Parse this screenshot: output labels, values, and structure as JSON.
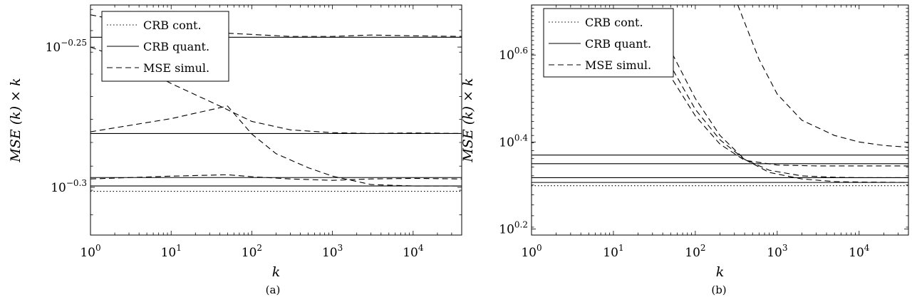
{
  "chart_data": [
    {
      "type": "line",
      "panel_label": "(a)",
      "xlabel": "k",
      "ylabel": "MSE (k) × k",
      "xscale": "log10",
      "yscale": "log10",
      "xlim": [
        1,
        40000
      ],
      "ylim_log10": [
        -0.317,
        -0.235
      ],
      "xticks": [
        {
          "value": 1,
          "base": "10",
          "exp": "0"
        },
        {
          "value": 10,
          "base": "10",
          "exp": "1"
        },
        {
          "value": 100,
          "base": "10",
          "exp": "2"
        },
        {
          "value": 1000,
          "base": "10",
          "exp": "3"
        },
        {
          "value": 10000,
          "base": "10",
          "exp": "4"
        }
      ],
      "yticks": [
        {
          "log10": -0.25,
          "base": "10",
          "exp": "−0.25"
        },
        {
          "log10": -0.3,
          "base": "10",
          "exp": "−0.3"
        }
      ],
      "legend": {
        "position": "top-left",
        "entries": [
          {
            "label": "CRB cont.",
            "style": "dotted"
          },
          {
            "label": "CRB quant.",
            "style": "solid"
          },
          {
            "label": "MSE simul.",
            "style": "dashed"
          }
        ]
      },
      "grid": false,
      "series": [
        {
          "style": "dotted",
          "points": [
            [
              1,
              -0.3014
            ],
            [
              40000,
              -0.3014
            ]
          ]
        },
        {
          "style": "solid",
          "points": [
            [
              1,
              -0.2465
            ],
            [
              40000,
              -0.2465
            ]
          ]
        },
        {
          "style": "solid",
          "points": [
            [
              1,
              -0.2808
            ],
            [
              40000,
              -0.2808
            ]
          ]
        },
        {
          "style": "solid",
          "points": [
            [
              1,
              -0.2965
            ],
            [
              40000,
              -0.2965
            ]
          ]
        },
        {
          "style": "solid",
          "points": [
            [
              1,
              -0.2995
            ],
            [
              40000,
              -0.2995
            ]
          ]
        },
        {
          "style": "dashed",
          "points": [
            [
              1,
              -0.2385
            ],
            [
              5,
              -0.2425
            ],
            [
              20,
              -0.2445
            ],
            [
              100,
              -0.2455
            ],
            [
              300,
              -0.2462
            ],
            [
              1000,
              -0.2462
            ],
            [
              3000,
              -0.2457
            ],
            [
              10000,
              -0.246
            ],
            [
              40000,
              -0.2462
            ]
          ]
        },
        {
          "style": "dashed",
          "points": [
            [
              1,
              -0.25
            ],
            [
              3,
              -0.255
            ],
            [
              10,
              -0.263
            ],
            [
              40,
              -0.271
            ],
            [
              100,
              -0.2765
            ],
            [
              300,
              -0.2795
            ],
            [
              1000,
              -0.2805
            ],
            [
              3000,
              -0.2808
            ],
            [
              10000,
              -0.2806
            ],
            [
              40000,
              -0.2808
            ]
          ]
        },
        {
          "style": "dashed",
          "points": [
            [
              1,
              -0.2802
            ],
            [
              10,
              -0.2755
            ],
            [
              50,
              -0.271
            ],
            [
              100,
              -0.281
            ],
            [
              200,
              -0.288
            ],
            [
              500,
              -0.293
            ],
            [
              1000,
              -0.296
            ],
            [
              3000,
              -0.299
            ],
            [
              10000,
              -0.2995
            ],
            [
              40000,
              -0.2995
            ]
          ]
        },
        {
          "style": "dashed",
          "points": [
            [
              1,
              -0.297
            ],
            [
              10,
              -0.296
            ],
            [
              50,
              -0.2955
            ],
            [
              100,
              -0.2962
            ],
            [
              300,
              -0.297
            ],
            [
              1000,
              -0.2975
            ],
            [
              3000,
              -0.297
            ],
            [
              10000,
              -0.2968
            ],
            [
              40000,
              -0.297
            ]
          ]
        }
      ]
    },
    {
      "type": "line",
      "panel_label": "(b)",
      "xlabel": "k",
      "ylabel": "MSE (k) × k",
      "xscale": "log10",
      "yscale": "log10",
      "xlim": [
        1,
        40000
      ],
      "ylim_log10": [
        0.186,
        0.715
      ],
      "xticks": [
        {
          "value": 1,
          "base": "10",
          "exp": "0"
        },
        {
          "value": 10,
          "base": "10",
          "exp": "1"
        },
        {
          "value": 100,
          "base": "10",
          "exp": "2"
        },
        {
          "value": 1000,
          "base": "10",
          "exp": "3"
        },
        {
          "value": 10000,
          "base": "10",
          "exp": "4"
        }
      ],
      "yticks": [
        {
          "log10": 0.2,
          "base": "10",
          "exp": "0.2"
        },
        {
          "log10": 0.4,
          "base": "10",
          "exp": "0.4"
        },
        {
          "log10": 0.6,
          "base": "10",
          "exp": "0.6"
        }
      ],
      "legend": {
        "position": "top-left",
        "entries": [
          {
            "label": "CRB cont.",
            "style": "dotted"
          },
          {
            "label": "CRB quant.",
            "style": "solid"
          },
          {
            "label": "MSE simul.",
            "style": "dashed"
          }
        ]
      },
      "grid": false,
      "series": [
        {
          "style": "dotted",
          "points": [
            [
              1,
              0.2995
            ],
            [
              40000,
              0.2995
            ]
          ]
        },
        {
          "style": "solid",
          "points": [
            [
              1,
              0.37
            ],
            [
              40000,
              0.37
            ]
          ]
        },
        {
          "style": "solid",
          "points": [
            [
              1,
              0.35
            ],
            [
              40000,
              0.35
            ]
          ]
        },
        {
          "style": "solid",
          "points": [
            [
              1,
              0.318
            ],
            [
              40000,
              0.318
            ]
          ]
        },
        {
          "style": "solid",
          "points": [
            [
              1,
              0.307
            ],
            [
              40000,
              0.307
            ]
          ]
        },
        {
          "style": "dashed",
          "points": [
            [
              330,
              0.715
            ],
            [
              450,
              0.65
            ],
            [
              600,
              0.59
            ],
            [
              1000,
              0.51
            ],
            [
              2000,
              0.45
            ],
            [
              5000,
              0.415
            ],
            [
              10000,
              0.4
            ],
            [
              20000,
              0.392
            ],
            [
              40000,
              0.388
            ]
          ]
        },
        {
          "style": "dashed",
          "points": [
            [
              31,
              0.615
            ],
            [
              50,
              0.55
            ],
            [
              100,
              0.46
            ],
            [
              200,
              0.395
            ],
            [
              400,
              0.358
            ],
            [
              1000,
              0.347
            ],
            [
              3000,
              0.345
            ],
            [
              10000,
              0.345
            ],
            [
              40000,
              0.345
            ]
          ]
        },
        {
          "style": "dashed",
          "points": [
            [
              33,
              0.64
            ],
            [
              50,
              0.575
            ],
            [
              100,
              0.475
            ],
            [
              200,
              0.405
            ],
            [
              400,
              0.36
            ],
            [
              800,
              0.335
            ],
            [
              2000,
              0.322
            ],
            [
              5000,
              0.319
            ],
            [
              10000,
              0.318
            ],
            [
              40000,
              0.318
            ]
          ]
        },
        {
          "style": "dashed",
          "points": [
            [
              34,
              0.68
            ],
            [
              50,
              0.61
            ],
            [
              100,
              0.5
            ],
            [
              200,
              0.415
            ],
            [
              400,
              0.36
            ],
            [
              800,
              0.33
            ],
            [
              2000,
              0.315
            ],
            [
              5000,
              0.309
            ],
            [
              10000,
              0.308
            ],
            [
              40000,
              0.307
            ]
          ]
        }
      ]
    }
  ]
}
